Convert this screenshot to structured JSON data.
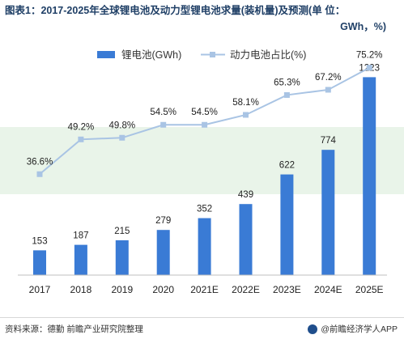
{
  "figure": {
    "title": "图表1：2017-2025年全球锂电池及动力型锂电池求量(装机量)及预测(单 位：",
    "title_unit": "GWh，%)",
    "source": "资料来源：德勤 前瞻产业研究院整理",
    "brand": "@前瞻经济学人APP"
  },
  "chart_data": {
    "type": "bar+line",
    "categories": [
      "2017",
      "2018",
      "2019",
      "2020",
      "2021E",
      "2022E",
      "2023E",
      "2024E",
      "2025E"
    ],
    "series": [
      {
        "name": "锂电池(GWh)",
        "type": "bar",
        "values": [
          153,
          187,
          215,
          279,
          352,
          439,
          622,
          774,
          1223
        ],
        "labels": [
          "153",
          "187",
          "215",
          "279",
          "352",
          "439",
          "622",
          "774",
          "1223"
        ],
        "color": "#3a7bd5"
      },
      {
        "name": "动力电池占比(%)",
        "type": "line",
        "values": [
          36.6,
          49.2,
          49.8,
          54.5,
          54.5,
          58.1,
          65.3,
          67.2,
          75.2
        ],
        "labels": [
          "36.6%",
          "49.2%",
          "49.8%",
          "54.5%",
          "54.5%",
          "58.1%",
          "65.3%",
          "67.2%",
          "75.2%"
        ],
        "color": "#a9c4e4"
      }
    ],
    "bar_ylim": [
      0,
      1300
    ],
    "line_ylim": [
      0,
      80
    ],
    "legend_position": "top-center",
    "grid": false
  }
}
